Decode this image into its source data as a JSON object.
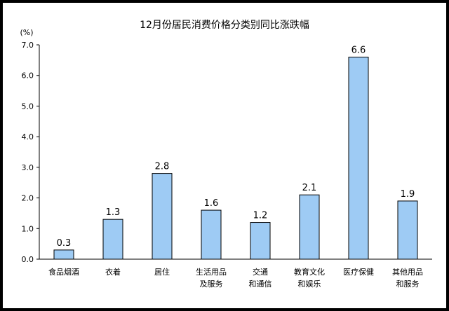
{
  "chart_data": {
    "type": "bar",
    "title": "12月份居民消费价格分类别同比涨跌幅",
    "unit_label": "(%)",
    "ylim": [
      0,
      7
    ],
    "y_ticks": [
      "0.0",
      "1.0",
      "2.0",
      "3.0",
      "4.0",
      "5.0",
      "6.0",
      "7.0"
    ],
    "categories": [
      [
        "食品烟酒"
      ],
      [
        "衣着"
      ],
      [
        "居住"
      ],
      [
        "生活用品",
        "及服务"
      ],
      [
        "交通",
        "和通信"
      ],
      [
        "教育文化",
        "和娱乐"
      ],
      [
        "医疗保健"
      ],
      [
        "其他用品",
        "和服务"
      ]
    ],
    "values": [
      0.3,
      1.3,
      2.8,
      1.6,
      1.2,
      2.1,
      6.6,
      1.9
    ],
    "value_labels": [
      "0.3",
      "1.3",
      "2.8",
      "1.6",
      "1.2",
      "2.1",
      "6.6",
      "1.9"
    ],
    "colors": {
      "bar_fill": "#9ecbf4",
      "bar_stroke": "#000000",
      "axis": "#000000"
    },
    "grid": false,
    "legend": "none"
  }
}
